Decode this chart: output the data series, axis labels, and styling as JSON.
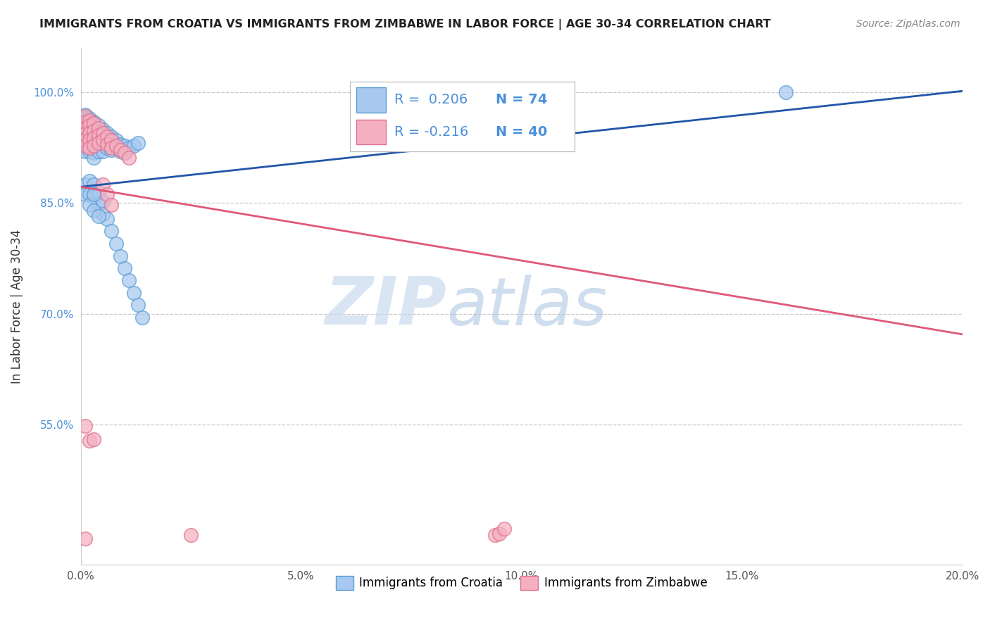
{
  "title": "IMMIGRANTS FROM CROATIA VS IMMIGRANTS FROM ZIMBABWE IN LABOR FORCE | AGE 30-34 CORRELATION CHART",
  "source": "Source: ZipAtlas.com",
  "ylabel": "In Labor Force | Age 30-34",
  "xlim": [
    0.0,
    0.2
  ],
  "ylim": [
    0.36,
    1.06
  ],
  "yticks": [
    0.55,
    0.7,
    0.85,
    1.0
  ],
  "ytick_labels": [
    "55.0%",
    "70.0%",
    "85.0%",
    "100.0%"
  ],
  "xticks": [
    0.0,
    0.05,
    0.1,
    0.15,
    0.2
  ],
  "xtick_labels": [
    "0.0%",
    "5.0%",
    "10.0%",
    "15.0%",
    "20.0%"
  ],
  "croatia_color": "#a8c8f0",
  "zimbabwe_color": "#f4b0c0",
  "croatia_edge": "#5a9fd4",
  "zimbabwe_edge": "#e07090",
  "trend_blue": "#2255aa",
  "trend_pink": "#e05878",
  "background": "#ffffff",
  "grid_color": "#c8c8c8",
  "watermark_zip": "ZIP",
  "watermark_atlas": "atlas",
  "croatia_x": [
    0.001,
    0.001,
    0.001,
    0.001,
    0.001,
    0.001,
    0.001,
    0.001,
    0.001,
    0.001,
    0.002,
    0.002,
    0.002,
    0.002,
    0.002,
    0.002,
    0.002,
    0.002,
    0.002,
    0.003,
    0.003,
    0.003,
    0.003,
    0.003,
    0.003,
    0.003,
    0.004,
    0.004,
    0.004,
    0.004,
    0.004,
    0.005,
    0.005,
    0.005,
    0.005,
    0.006,
    0.006,
    0.006,
    0.007,
    0.007,
    0.007,
    0.008,
    0.008,
    0.009,
    0.009,
    0.01,
    0.01,
    0.011,
    0.012,
    0.013,
    0.001,
    0.001,
    0.002,
    0.002,
    0.003,
    0.003,
    0.004,
    0.004,
    0.005,
    0.005,
    0.006,
    0.007,
    0.008,
    0.009,
    0.01,
    0.011,
    0.012,
    0.013,
    0.014,
    0.002,
    0.003,
    0.003,
    0.004,
    0.16
  ],
  "croatia_y": [
    0.97,
    0.965,
    0.96,
    0.955,
    0.95,
    0.945,
    0.94,
    0.935,
    0.93,
    0.92,
    0.965,
    0.96,
    0.955,
    0.945,
    0.94,
    0.935,
    0.93,
    0.925,
    0.92,
    0.96,
    0.95,
    0.94,
    0.93,
    0.925,
    0.918,
    0.912,
    0.955,
    0.948,
    0.94,
    0.93,
    0.92,
    0.95,
    0.94,
    0.93,
    0.92,
    0.945,
    0.935,
    0.925,
    0.94,
    0.932,
    0.922,
    0.935,
    0.925,
    0.93,
    0.92,
    0.928,
    0.918,
    0.925,
    0.928,
    0.932,
    0.875,
    0.862,
    0.88,
    0.862,
    0.875,
    0.858,
    0.865,
    0.848,
    0.852,
    0.835,
    0.828,
    0.812,
    0.795,
    0.778,
    0.762,
    0.745,
    0.728,
    0.712,
    0.695,
    0.848,
    0.862,
    0.84,
    0.832,
    1.0
  ],
  "zimbabwe_x": [
    0.001,
    0.001,
    0.001,
    0.001,
    0.001,
    0.001,
    0.002,
    0.002,
    0.002,
    0.002,
    0.002,
    0.003,
    0.003,
    0.003,
    0.003,
    0.004,
    0.004,
    0.004,
    0.005,
    0.005,
    0.006,
    0.006,
    0.007,
    0.007,
    0.008,
    0.009,
    0.01,
    0.011,
    0.005,
    0.006,
    0.007,
    0.001,
    0.025,
    0.002,
    0.003,
    0.001,
    0.094,
    0.095,
    0.096
  ],
  "zimbabwe_y": [
    0.968,
    0.96,
    0.952,
    0.944,
    0.936,
    0.928,
    0.962,
    0.955,
    0.945,
    0.935,
    0.925,
    0.958,
    0.948,
    0.938,
    0.928,
    0.952,
    0.942,
    0.932,
    0.945,
    0.935,
    0.94,
    0.93,
    0.935,
    0.925,
    0.928,
    0.922,
    0.918,
    0.912,
    0.875,
    0.862,
    0.848,
    0.548,
    0.4,
    0.528,
    0.53,
    0.395,
    0.4,
    0.402,
    0.408
  ],
  "blue_trend_x0": 0.0,
  "blue_trend_y0": 0.872,
  "blue_trend_x1": 0.2,
  "blue_trend_y1": 1.002,
  "pink_trend_x0": 0.0,
  "pink_trend_y0": 0.872,
  "pink_trend_x1": 0.2,
  "pink_trend_y1": 0.672
}
